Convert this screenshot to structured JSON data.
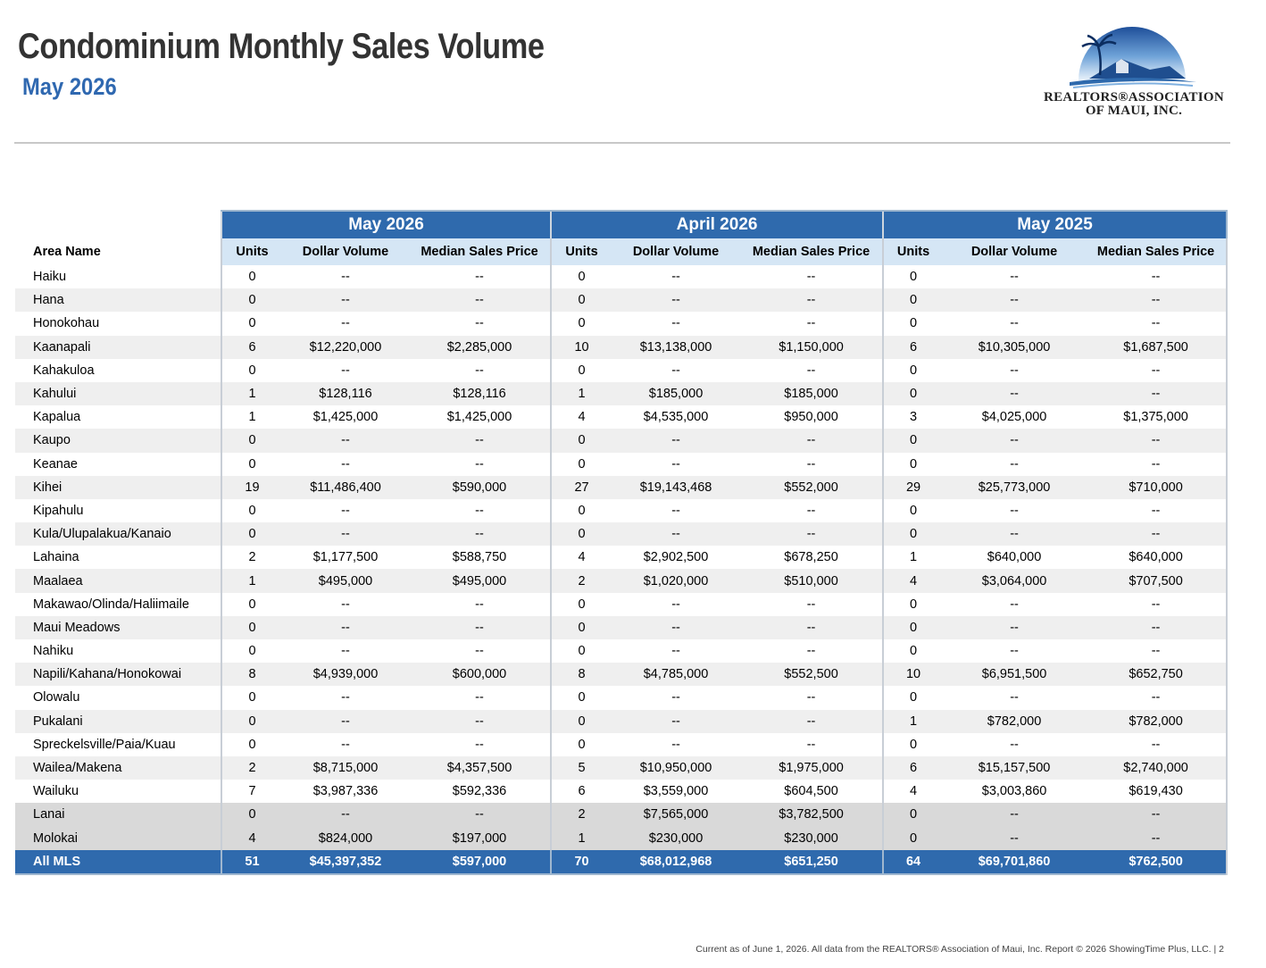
{
  "header": {
    "title": "Condominium Monthly Sales Volume",
    "subtitle": "May 2026",
    "logo_line1": "REALTORS®ASSOCIATION",
    "logo_line2": "OF MAUI, INC."
  },
  "table": {
    "area_header": "Area Name",
    "groups": [
      "May 2026",
      "April 2026",
      "May 2025"
    ],
    "columns": [
      "Units",
      "Dollar Volume",
      "Median Sales Price"
    ],
    "rows": [
      {
        "area": "Haiku",
        "v": [
          "0",
          "--",
          "--",
          "0",
          "--",
          "--",
          "0",
          "--",
          "--"
        ]
      },
      {
        "area": "Hana",
        "v": [
          "0",
          "--",
          "--",
          "0",
          "--",
          "--",
          "0",
          "--",
          "--"
        ]
      },
      {
        "area": "Honokohau",
        "v": [
          "0",
          "--",
          "--",
          "0",
          "--",
          "--",
          "0",
          "--",
          "--"
        ]
      },
      {
        "area": "Kaanapali",
        "v": [
          "6",
          "$12,220,000",
          "$2,285,000",
          "10",
          "$13,138,000",
          "$1,150,000",
          "6",
          "$10,305,000",
          "$1,687,500"
        ]
      },
      {
        "area": "Kahakuloa",
        "v": [
          "0",
          "--",
          "--",
          "0",
          "--",
          "--",
          "0",
          "--",
          "--"
        ]
      },
      {
        "area": "Kahului",
        "v": [
          "1",
          "$128,116",
          "$128,116",
          "1",
          "$185,000",
          "$185,000",
          "0",
          "--",
          "--"
        ]
      },
      {
        "area": "Kapalua",
        "v": [
          "1",
          "$1,425,000",
          "$1,425,000",
          "4",
          "$4,535,000",
          "$950,000",
          "3",
          "$4,025,000",
          "$1,375,000"
        ]
      },
      {
        "area": "Kaupo",
        "v": [
          "0",
          "--",
          "--",
          "0",
          "--",
          "--",
          "0",
          "--",
          "--"
        ]
      },
      {
        "area": "Keanae",
        "v": [
          "0",
          "--",
          "--",
          "0",
          "--",
          "--",
          "0",
          "--",
          "--"
        ]
      },
      {
        "area": "Kihei",
        "v": [
          "19",
          "$11,486,400",
          "$590,000",
          "27",
          "$19,143,468",
          "$552,000",
          "29",
          "$25,773,000",
          "$710,000"
        ]
      },
      {
        "area": "Kipahulu",
        "v": [
          "0",
          "--",
          "--",
          "0",
          "--",
          "--",
          "0",
          "--",
          "--"
        ]
      },
      {
        "area": "Kula/Ulupalakua/Kanaio",
        "v": [
          "0",
          "--",
          "--",
          "0",
          "--",
          "--",
          "0",
          "--",
          "--"
        ]
      },
      {
        "area": "Lahaina",
        "v": [
          "2",
          "$1,177,500",
          "$588,750",
          "4",
          "$2,902,500",
          "$678,250",
          "1",
          "$640,000",
          "$640,000"
        ]
      },
      {
        "area": "Maalaea",
        "v": [
          "1",
          "$495,000",
          "$495,000",
          "2",
          "$1,020,000",
          "$510,000",
          "4",
          "$3,064,000",
          "$707,500"
        ]
      },
      {
        "area": "Makawao/Olinda/Haliimaile",
        "v": [
          "0",
          "--",
          "--",
          "0",
          "--",
          "--",
          "0",
          "--",
          "--"
        ]
      },
      {
        "area": "Maui Meadows",
        "v": [
          "0",
          "--",
          "--",
          "0",
          "--",
          "--",
          "0",
          "--",
          "--"
        ]
      },
      {
        "area": "Nahiku",
        "v": [
          "0",
          "--",
          "--",
          "0",
          "--",
          "--",
          "0",
          "--",
          "--"
        ]
      },
      {
        "area": "Napili/Kahana/Honokowai",
        "v": [
          "8",
          "$4,939,000",
          "$600,000",
          "8",
          "$4,785,000",
          "$552,500",
          "10",
          "$6,951,500",
          "$652,750"
        ]
      },
      {
        "area": "Olowalu",
        "v": [
          "0",
          "--",
          "--",
          "0",
          "--",
          "--",
          "0",
          "--",
          "--"
        ]
      },
      {
        "area": "Pukalani",
        "v": [
          "0",
          "--",
          "--",
          "0",
          "--",
          "--",
          "1",
          "$782,000",
          "$782,000"
        ]
      },
      {
        "area": "Spreckelsville/Paia/Kuau",
        "v": [
          "0",
          "--",
          "--",
          "0",
          "--",
          "--",
          "0",
          "--",
          "--"
        ]
      },
      {
        "area": "Wailea/Makena",
        "v": [
          "2",
          "$8,715,000",
          "$4,357,500",
          "5",
          "$10,950,000",
          "$1,975,000",
          "6",
          "$15,157,500",
          "$2,740,000"
        ]
      },
      {
        "area": "Wailuku",
        "v": [
          "7",
          "$3,987,336",
          "$592,336",
          "6",
          "$3,559,000",
          "$604,500",
          "4",
          "$3,003,860",
          "$619,430"
        ]
      },
      {
        "area": "Lanai",
        "v": [
          "0",
          "--",
          "--",
          "2",
          "$7,565,000",
          "$3,782,500",
          "0",
          "--",
          "--"
        ],
        "grey": true
      },
      {
        "area": "Molokai",
        "v": [
          "4",
          "$824,000",
          "$197,000",
          "1",
          "$230,000",
          "$230,000",
          "0",
          "--",
          "--"
        ],
        "grey": true
      }
    ],
    "total": {
      "area": "All MLS",
      "v": [
        "51",
        "$45,397,352",
        "$597,000",
        "70",
        "$68,012,968",
        "$651,250",
        "64",
        "$69,701,860",
        "$762,500"
      ]
    }
  },
  "footer": "Current as of June 1, 2026. All data from the REALTORS® Association of Maui, Inc. Report © 2026 ShowingTime Plus, LLC.  |  2",
  "colors": {
    "header_blue": "#2f6aad",
    "subheader_blue": "#d5e6f5",
    "title_gray": "#333333",
    "subtitle_blue": "#2f68b0"
  }
}
